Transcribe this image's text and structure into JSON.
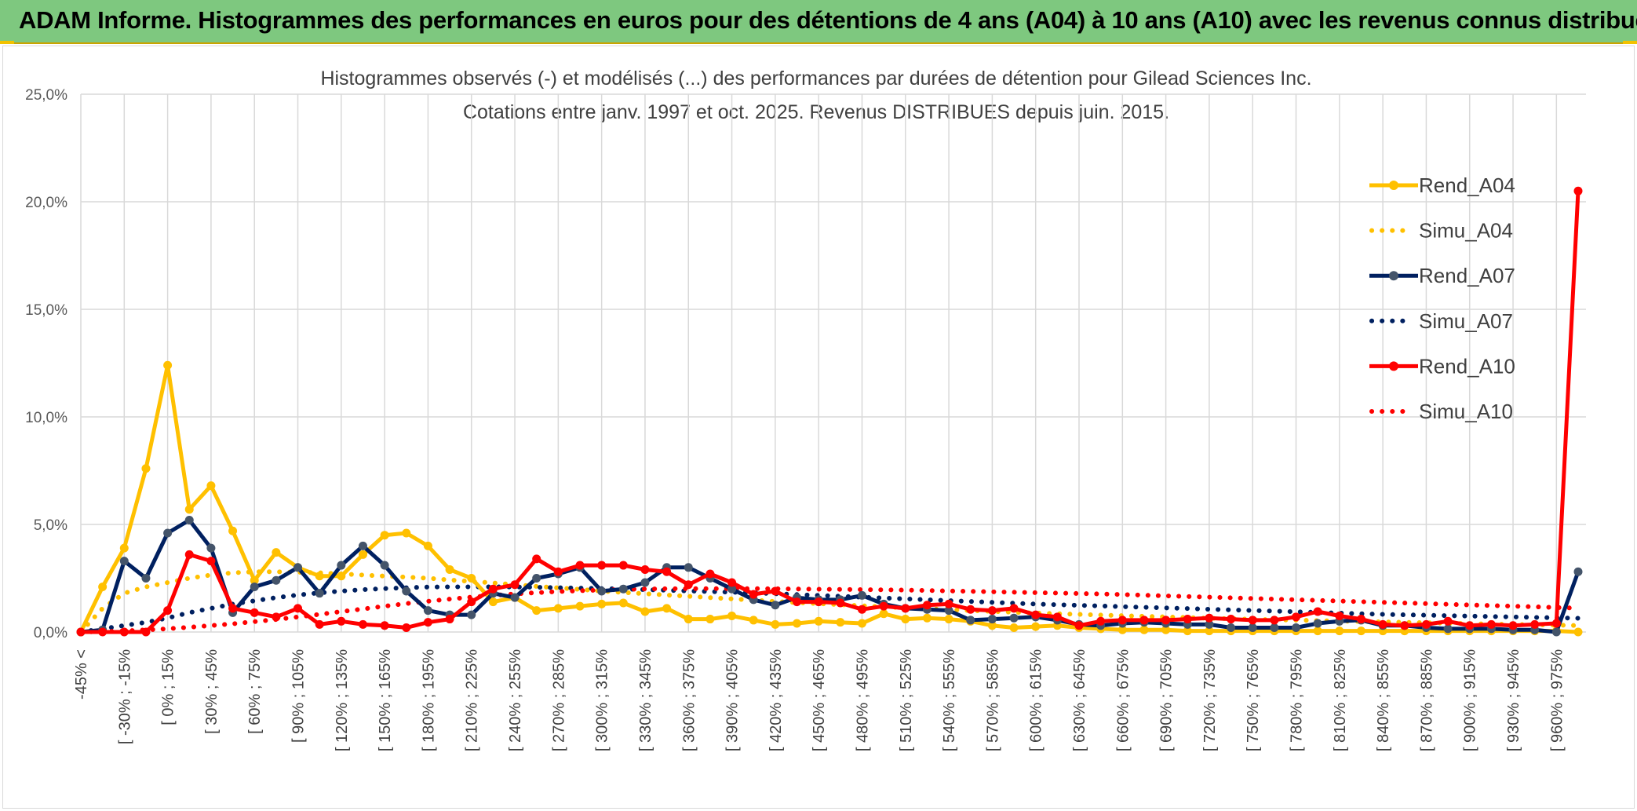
{
  "header": {
    "title": "ADAM Informe. Histogrammes des performances en euros pour des détentions de 4 ans (A04) à 10 ans (A10) avec les revenus connus distribués"
  },
  "colors": {
    "a04": "#ffc000",
    "a07": "#002060",
    "a07_marker": "#44546a",
    "a10": "#ff0000",
    "banner": "#7ec87f"
  },
  "chart_data": {
    "type": "line",
    "title_line1": "Histogrammes observés (-) et modélisés (...) des performances par durées de détention pour Gilead Sciences Inc.",
    "title_line2": "Cotations entre janv. 1997 et oct. 2025. Revenus DISTRIBUES depuis juin. 2015.",
    "ylim": [
      0,
      25
    ],
    "yticks": [
      "0,0%",
      "5,0%",
      "10,0%",
      "15,0%",
      "20,0%",
      "25,0%"
    ],
    "ytick_values": [
      0,
      5,
      10,
      15,
      20,
      25
    ],
    "n_points": 70,
    "category_labels": [
      "-45% <",
      "[ -30% ; -15%",
      "[ 0% ; 15%",
      "[ 30% ; 45%",
      "[ 60% ; 75%",
      "[ 90% ; 105%",
      "[ 120% ; 135%",
      "[ 150% ; 165%",
      "[ 180% ; 195%",
      "[ 210% ; 225%",
      "[ 240% ; 255%",
      "[ 270% ; 285%",
      "[ 300% ; 315%",
      "[ 330% ; 345%",
      "[ 360% ; 375%",
      "[ 390% ; 405%",
      "[ 420% ; 435%",
      "[ 450% ; 465%",
      "[ 480% ; 495%",
      "[ 510% ; 525%",
      "[ 540% ; 555%",
      "[ 570% ; 585%",
      "[ 600% ; 615%",
      "[ 630% ; 645%",
      "[ 660% ; 675%",
      "[ 690% ; 705%",
      "[ 720% ; 735%",
      "[ 750% ; 765%",
      "[ 780% ; 795%",
      "[ 810% ; 825%",
      "[ 840% ; 855%",
      "[ 870% ; 885%",
      "[ 900% ; 915%",
      "[ 930% ; 945%",
      "[ 960% ; 975%"
    ],
    "series": [
      {
        "name": "Rend_A04",
        "style": "solid",
        "color": "#ffc000",
        "marker": "#ffc000",
        "values": [
          0,
          2.1,
          3.9,
          7.6,
          12.4,
          5.7,
          6.8,
          4.7,
          2.4,
          3.7,
          3.0,
          2.6,
          2.6,
          3.6,
          4.5,
          4.6,
          4.0,
          2.9,
          2.5,
          1.4,
          1.6,
          1.0,
          1.1,
          1.2,
          1.3,
          1.35,
          0.95,
          1.1,
          0.6,
          0.6,
          0.75,
          0.55,
          0.35,
          0.4,
          0.5,
          0.45,
          0.4,
          0.85,
          0.6,
          0.65,
          0.6,
          0.5,
          0.3,
          0.2,
          0.25,
          0.3,
          0.2,
          0.15,
          0.1,
          0.1,
          0.1,
          0.05,
          0.05,
          0.05,
          0.05,
          0.05,
          0.05,
          0.05,
          0.05,
          0.05,
          0.05,
          0.05,
          0.05,
          0.05,
          0.05,
          0.05,
          0.05,
          0.05,
          0.05,
          0.0
        ]
      },
      {
        "name": "Simu_A04",
        "style": "dotted",
        "color": "#ffc000",
        "values": [
          0,
          1.1,
          1.8,
          2.1,
          2.3,
          2.5,
          2.65,
          2.75,
          2.8,
          2.8,
          2.78,
          2.75,
          2.7,
          2.65,
          2.6,
          2.55,
          2.5,
          2.42,
          2.35,
          2.28,
          2.2,
          2.12,
          2.05,
          1.98,
          1.9,
          1.84,
          1.78,
          1.72,
          1.66,
          1.6,
          1.54,
          1.48,
          1.42,
          1.37,
          1.32,
          1.27,
          1.22,
          1.17,
          1.12,
          1.08,
          1.04,
          1.0,
          0.96,
          0.92,
          0.88,
          0.85,
          0.82,
          0.79,
          0.76,
          0.73,
          0.7,
          0.67,
          0.64,
          0.62,
          0.59,
          0.57,
          0.55,
          0.53,
          0.51,
          0.49,
          0.47,
          0.45,
          0.43,
          0.41,
          0.39,
          0.37,
          0.35,
          0.34,
          0.32,
          0.3
        ]
      },
      {
        "name": "Rend_A07",
        "style": "solid",
        "color": "#002060",
        "marker": "#44546a",
        "values": [
          0,
          0.1,
          3.3,
          2.5,
          4.6,
          5.2,
          3.9,
          0.9,
          2.1,
          2.4,
          3.0,
          1.8,
          3.1,
          4.0,
          3.1,
          1.9,
          1.0,
          0.8,
          0.8,
          1.8,
          1.6,
          2.5,
          2.7,
          3.0,
          1.9,
          2.0,
          2.3,
          3.0,
          3.0,
          2.5,
          2.0,
          1.5,
          1.25,
          1.6,
          1.5,
          1.5,
          1.7,
          1.3,
          1.1,
          1.05,
          1.0,
          0.55,
          0.6,
          0.65,
          0.7,
          0.55,
          0.35,
          0.3,
          0.4,
          0.45,
          0.4,
          0.35,
          0.35,
          0.2,
          0.2,
          0.2,
          0.2,
          0.4,
          0.5,
          0.55,
          0.3,
          0.3,
          0.2,
          0.15,
          0.15,
          0.15,
          0.1,
          0.1,
          0.0,
          2.8
        ]
      },
      {
        "name": "Simu_A07",
        "style": "dotted",
        "color": "#002060",
        "values": [
          0,
          0.15,
          0.3,
          0.45,
          0.65,
          0.9,
          1.1,
          1.3,
          1.45,
          1.6,
          1.72,
          1.82,
          1.9,
          1.97,
          2.02,
          2.06,
          2.09,
          2.1,
          2.1,
          2.1,
          2.09,
          2.08,
          2.06,
          2.04,
          2.02,
          2.0,
          1.97,
          1.94,
          1.91,
          1.88,
          1.85,
          1.82,
          1.78,
          1.74,
          1.7,
          1.66,
          1.62,
          1.58,
          1.54,
          1.5,
          1.46,
          1.42,
          1.38,
          1.34,
          1.3,
          1.27,
          1.24,
          1.21,
          1.18,
          1.15,
          1.12,
          1.09,
          1.06,
          1.03,
          1.0,
          0.97,
          0.94,
          0.91,
          0.88,
          0.85,
          0.82,
          0.8,
          0.78,
          0.76,
          0.74,
          0.72,
          0.7,
          0.68,
          0.66,
          0.64
        ]
      },
      {
        "name": "Rend_A10",
        "style": "solid",
        "color": "#ff0000",
        "marker": "#ff0000",
        "values": [
          0,
          0,
          0,
          0,
          1.0,
          3.6,
          3.3,
          1.1,
          0.9,
          0.7,
          1.1,
          0.35,
          0.5,
          0.35,
          0.3,
          0.2,
          0.45,
          0.6,
          1.4,
          2.0,
          2.2,
          3.4,
          2.8,
          3.1,
          3.1,
          3.1,
          2.9,
          2.8,
          2.2,
          2.7,
          2.3,
          1.75,
          1.9,
          1.4,
          1.4,
          1.35,
          1.05,
          1.2,
          1.1,
          1.25,
          1.3,
          1.05,
          1.0,
          1.1,
          0.8,
          0.7,
          0.3,
          0.5,
          0.55,
          0.55,
          0.55,
          0.6,
          0.65,
          0.6,
          0.55,
          0.55,
          0.7,
          0.95,
          0.75,
          0.6,
          0.35,
          0.3,
          0.35,
          0.5,
          0.3,
          0.35,
          0.3,
          0.35,
          0.4,
          20.5
        ]
      },
      {
        "name": "Simu_A10",
        "style": "dotted",
        "color": "#ff0000",
        "values": [
          0,
          0.02,
          0.05,
          0.1,
          0.15,
          0.22,
          0.3,
          0.38,
          0.48,
          0.58,
          0.7,
          0.82,
          0.95,
          1.07,
          1.2,
          1.32,
          1.43,
          1.53,
          1.62,
          1.7,
          1.77,
          1.83,
          1.88,
          1.92,
          1.95,
          1.98,
          2.0,
          2.01,
          2.02,
          2.02,
          2.02,
          2.02,
          2.01,
          2.0,
          1.99,
          1.98,
          1.97,
          1.96,
          1.95,
          1.93,
          1.91,
          1.89,
          1.87,
          1.85,
          1.83,
          1.81,
          1.79,
          1.77,
          1.74,
          1.71,
          1.68,
          1.65,
          1.62,
          1.59,
          1.56,
          1.53,
          1.5,
          1.47,
          1.44,
          1.41,
          1.38,
          1.35,
          1.32,
          1.29,
          1.26,
          1.23,
          1.2,
          1.17,
          1.14,
          1.11
        ]
      }
    ],
    "legend": [
      "Rend_A04",
      "Simu_A04",
      "Rend_A07",
      "Simu_A07",
      "Rend_A10",
      "Simu_A10"
    ],
    "legend_position": "top-right",
    "grid": true
  }
}
